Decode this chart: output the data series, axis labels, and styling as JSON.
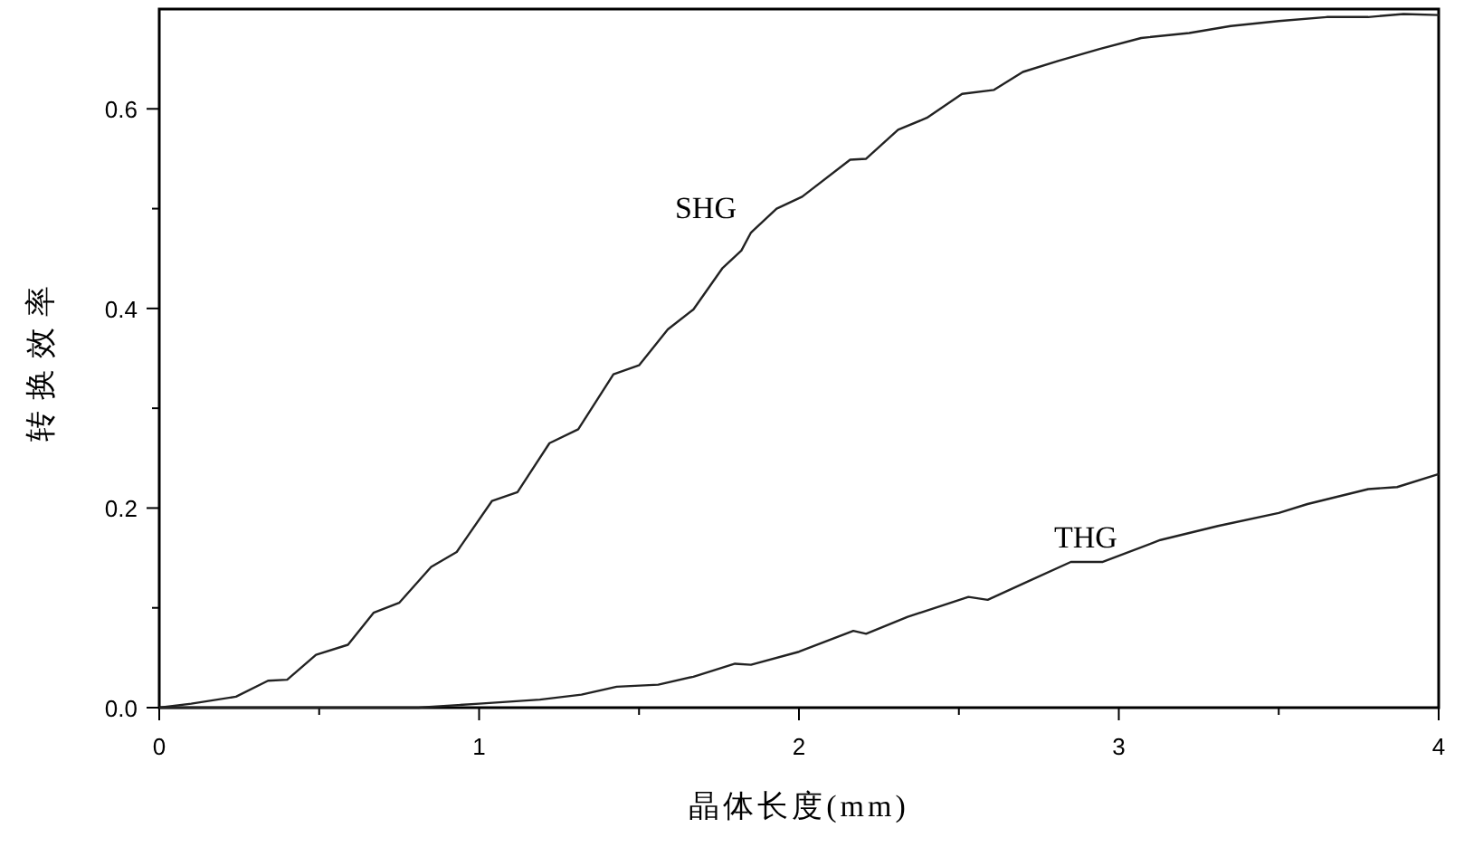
{
  "chart_data": {
    "type": "line",
    "xlabel": "晶体长度(mm)",
    "ylabel": "转换效率",
    "xlim": [
      0,
      4
    ],
    "ylim": [
      0,
      0.7
    ],
    "xticks": [
      0,
      {
        "value": 0.5,
        "label": null
      },
      1,
      {
        "value": 1.5,
        "label": null
      },
      2,
      {
        "value": 2.5,
        "label": null
      },
      3,
      {
        "value": 3.5,
        "label": null
      },
      4
    ],
    "yticks": [
      {
        "value": 0,
        "label": "0.0"
      },
      {
        "value": 0.1,
        "label": null
      },
      {
        "value": 0.2,
        "label": "0.2"
      },
      {
        "value": 0.3,
        "label": null
      },
      {
        "value": 0.4,
        "label": "0.4"
      },
      {
        "value": 0.5,
        "label": null
      },
      {
        "value": 0.6,
        "label": "0.6"
      }
    ],
    "grid": false,
    "line_style": "solid",
    "series": [
      {
        "name": "SHG",
        "color": "#222222",
        "x": [
          0,
          0.1,
          0.24,
          0.34,
          0.4,
          0.49,
          0.59,
          0.67,
          0.75,
          0.85,
          0.93,
          1.04,
          1.12,
          1.22,
          1.31,
          1.42,
          1.5,
          1.59,
          1.67,
          1.76,
          1.82,
          1.85,
          1.93,
          2.01,
          2.16,
          2.21,
          2.31,
          2.4,
          2.51,
          2.61,
          2.7,
          2.81,
          2.94,
          3.07,
          3.22,
          3.35,
          3.5,
          3.65,
          3.78,
          3.89,
          4.0
        ],
        "values": [
          0,
          0.004,
          0.011,
          0.027,
          0.028,
          0.053,
          0.063,
          0.095,
          0.105,
          0.141,
          0.156,
          0.207,
          0.216,
          0.265,
          0.279,
          0.334,
          0.343,
          0.379,
          0.399,
          0.44,
          0.458,
          0.476,
          0.5,
          0.512,
          0.549,
          0.55,
          0.579,
          0.591,
          0.615,
          0.619,
          0.637,
          0.648,
          0.66,
          0.671,
          0.676,
          0.683,
          0.688,
          0.692,
          0.692,
          0.695,
          0.694
        ]
      },
      {
        "name": "THG",
        "color": "#222222",
        "x": [
          0,
          0.81,
          1.0,
          1.19,
          1.32,
          1.43,
          1.56,
          1.67,
          1.8,
          1.85,
          2.0,
          2.17,
          2.21,
          2.34,
          2.53,
          2.59,
          2.72,
          2.85,
          2.95,
          3.13,
          3.31,
          3.5,
          3.59,
          3.78,
          3.87,
          4.0
        ],
        "values": [
          0,
          0,
          0.004,
          0.008,
          0.013,
          0.021,
          0.023,
          0.031,
          0.044,
          0.043,
          0.056,
          0.077,
          0.074,
          0.091,
          0.111,
          0.108,
          0.127,
          0.146,
          0.146,
          0.168,
          0.182,
          0.195,
          0.204,
          0.219,
          0.221,
          0.234
        ]
      }
    ]
  }
}
